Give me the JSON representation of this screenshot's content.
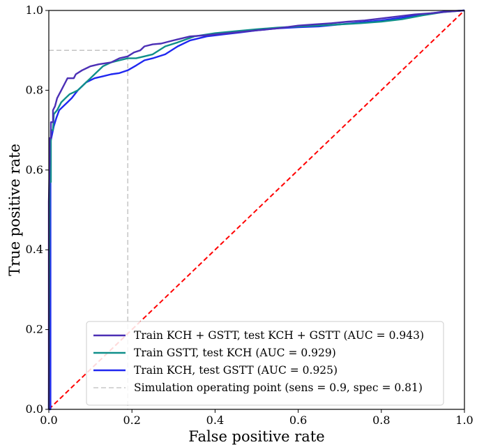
{
  "chart_data": {
    "type": "line",
    "title": "",
    "xlabel": "False positive rate",
    "ylabel": "True positive rate",
    "xlim": [
      0.0,
      1.0
    ],
    "ylim": [
      0.0,
      1.0
    ],
    "x_ticks": [
      "0.0",
      "0.2",
      "0.4",
      "0.6",
      "0.8",
      "1.0"
    ],
    "y_ticks": [
      "0.0",
      "0.2",
      "0.4",
      "0.6",
      "0.8",
      "1.0"
    ],
    "grid": false,
    "legend_position": "lower-right",
    "series": [
      {
        "name": "Train KCH + GSTT, test KCH + GSTT (AUC = 0.943)",
        "color": "#4b2fb5",
        "style": "solid",
        "points": [
          [
            0,
            0
          ],
          [
            0,
            0.52
          ],
          [
            0.002,
            0.62
          ],
          [
            0.002,
            0.68
          ],
          [
            0.005,
            0.68
          ],
          [
            0.005,
            0.72
          ],
          [
            0.01,
            0.72
          ],
          [
            0.01,
            0.75
          ],
          [
            0.015,
            0.76
          ],
          [
            0.02,
            0.78
          ],
          [
            0.025,
            0.79
          ],
          [
            0.03,
            0.8
          ],
          [
            0.04,
            0.82
          ],
          [
            0.045,
            0.83
          ],
          [
            0.06,
            0.83
          ],
          [
            0.065,
            0.84
          ],
          [
            0.08,
            0.85
          ],
          [
            0.1,
            0.86
          ],
          [
            0.12,
            0.865
          ],
          [
            0.15,
            0.87
          ],
          [
            0.17,
            0.88
          ],
          [
            0.19,
            0.885
          ],
          [
            0.205,
            0.895
          ],
          [
            0.22,
            0.9
          ],
          [
            0.23,
            0.91
          ],
          [
            0.25,
            0.915
          ],
          [
            0.27,
            0.917
          ],
          [
            0.3,
            0.925
          ],
          [
            0.34,
            0.935
          ],
          [
            0.38,
            0.938
          ],
          [
            0.42,
            0.942
          ],
          [
            0.45,
            0.945
          ],
          [
            0.5,
            0.95
          ],
          [
            0.55,
            0.955
          ],
          [
            0.6,
            0.962
          ],
          [
            0.64,
            0.965
          ],
          [
            0.68,
            0.968
          ],
          [
            0.72,
            0.972
          ],
          [
            0.76,
            0.975
          ],
          [
            0.8,
            0.98
          ],
          [
            0.84,
            0.985
          ],
          [
            0.88,
            0.99
          ],
          [
            0.92,
            0.993
          ],
          [
            0.96,
            0.997
          ],
          [
            1.0,
            1.0
          ]
        ]
      },
      {
        "name": "Train GSTT, test KCH (AUC = 0.929)",
        "color": "#0f8f8a",
        "style": "solid",
        "points": [
          [
            0,
            0
          ],
          [
            0.002,
            0.57
          ],
          [
            0.005,
            0.57
          ],
          [
            0.005,
            0.7
          ],
          [
            0.01,
            0.7
          ],
          [
            0.012,
            0.74
          ],
          [
            0.02,
            0.75
          ],
          [
            0.025,
            0.76
          ],
          [
            0.03,
            0.77
          ],
          [
            0.04,
            0.78
          ],
          [
            0.05,
            0.79
          ],
          [
            0.06,
            0.795
          ],
          [
            0.07,
            0.8
          ],
          [
            0.09,
            0.82
          ],
          [
            0.11,
            0.84
          ],
          [
            0.13,
            0.86
          ],
          [
            0.15,
            0.87
          ],
          [
            0.17,
            0.875
          ],
          [
            0.19,
            0.88
          ],
          [
            0.21,
            0.88
          ],
          [
            0.23,
            0.885
          ],
          [
            0.25,
            0.89
          ],
          [
            0.28,
            0.91
          ],
          [
            0.31,
            0.92
          ],
          [
            0.35,
            0.935
          ],
          [
            0.4,
            0.943
          ],
          [
            0.45,
            0.948
          ],
          [
            0.5,
            0.953
          ],
          [
            0.55,
            0.957
          ],
          [
            0.6,
            0.96
          ],
          [
            0.65,
            0.962
          ],
          [
            0.7,
            0.965
          ],
          [
            0.75,
            0.968
          ],
          [
            0.8,
            0.972
          ],
          [
            0.85,
            0.978
          ],
          [
            0.9,
            0.988
          ],
          [
            0.95,
            0.996
          ],
          [
            1.0,
            1.0
          ]
        ]
      },
      {
        "name": "Train KCH, test GSTT (AUC = 0.925)",
        "color": "#1f27f0",
        "style": "solid",
        "points": [
          [
            0,
            0
          ],
          [
            0.004,
            0.0
          ],
          [
            0.004,
            0.67
          ],
          [
            0.008,
            0.69
          ],
          [
            0.012,
            0.71
          ],
          [
            0.018,
            0.73
          ],
          [
            0.025,
            0.75
          ],
          [
            0.035,
            0.76
          ],
          [
            0.045,
            0.77
          ],
          [
            0.055,
            0.78
          ],
          [
            0.07,
            0.8
          ],
          [
            0.09,
            0.82
          ],
          [
            0.11,
            0.83
          ],
          [
            0.13,
            0.835
          ],
          [
            0.15,
            0.84
          ],
          [
            0.17,
            0.843
          ],
          [
            0.19,
            0.85
          ],
          [
            0.21,
            0.862
          ],
          [
            0.23,
            0.875
          ],
          [
            0.25,
            0.88
          ],
          [
            0.28,
            0.89
          ],
          [
            0.31,
            0.91
          ],
          [
            0.34,
            0.925
          ],
          [
            0.38,
            0.935
          ],
          [
            0.42,
            0.94
          ],
          [
            0.46,
            0.945
          ],
          [
            0.5,
            0.95
          ],
          [
            0.55,
            0.955
          ],
          [
            0.6,
            0.958
          ],
          [
            0.65,
            0.96
          ],
          [
            0.7,
            0.965
          ],
          [
            0.75,
            0.97
          ],
          [
            0.8,
            0.975
          ],
          [
            0.85,
            0.982
          ],
          [
            0.9,
            0.99
          ],
          [
            0.95,
            0.997
          ],
          [
            1.0,
            1.0
          ]
        ]
      },
      {
        "name": "Simulation operating point (sens = 0.9, spec = 0.81)",
        "color": "#bdbdbd",
        "style": "dashed",
        "points": [
          [
            0,
            0.9
          ],
          [
            0.19,
            0.9
          ],
          [
            0.19,
            0
          ]
        ]
      }
    ],
    "reference_line": {
      "color": "#ff0000",
      "style": "dashed",
      "points": [
        [
          0,
          0
        ],
        [
          1,
          1
        ]
      ]
    }
  }
}
